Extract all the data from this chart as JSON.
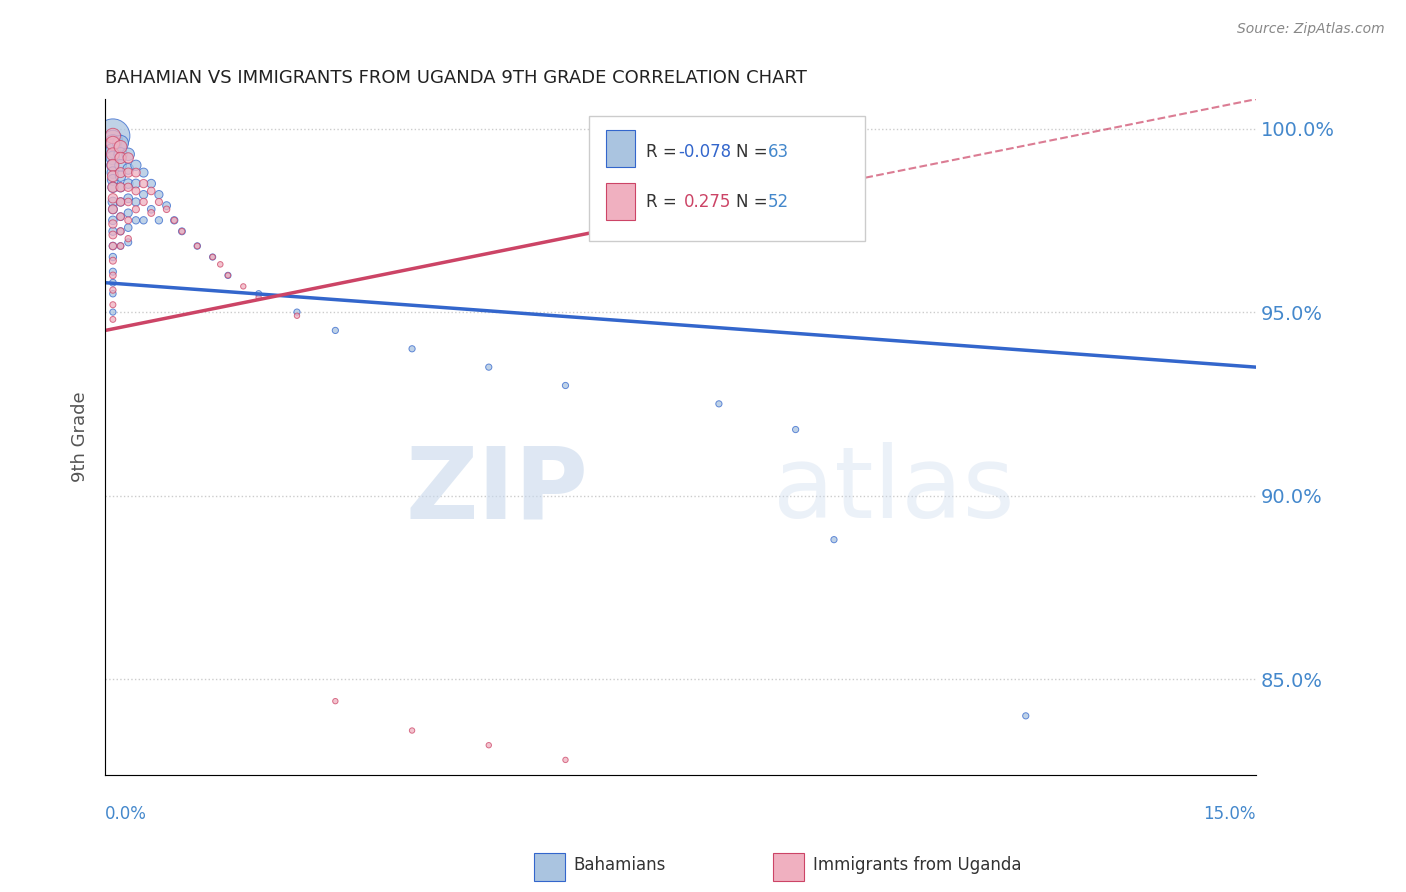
{
  "title": "BAHAMIAN VS IMMIGRANTS FROM UGANDA 9TH GRADE CORRELATION CHART",
  "source": "Source: ZipAtlas.com",
  "ylabel": "9th Grade",
  "legend_blue_label": "Bahamians",
  "legend_pink_label": "Immigrants from Uganda",
  "r_blue": -0.078,
  "n_blue": 63,
  "r_pink": 0.275,
  "n_pink": 52,
  "blue_color": "#aac4e0",
  "pink_color": "#f0b0c0",
  "trend_blue_color": "#3366cc",
  "trend_pink_color": "#cc4466",
  "watermark_zip": "ZIP",
  "watermark_atlas": "atlas",
  "xlim": [
    0.0,
    0.15
  ],
  "ylim": [
    0.824,
    1.008
  ],
  "yticks": [
    0.85,
    0.9,
    0.95,
    1.0
  ],
  "ytick_labels": [
    "85.0%",
    "90.0%",
    "95.0%",
    "100.0%"
  ],
  "grid_color": "#cccccc",
  "right_axis_color": "#4488cc",
  "blue_dots": [
    [
      0.001,
      0.998
    ],
    [
      0.001,
      0.997
    ],
    [
      0.001,
      0.996
    ],
    [
      0.001,
      0.995
    ],
    [
      0.001,
      0.994
    ],
    [
      0.001,
      0.992
    ],
    [
      0.001,
      0.99
    ],
    [
      0.001,
      0.988
    ],
    [
      0.001,
      0.986
    ],
    [
      0.001,
      0.984
    ],
    [
      0.001,
      0.98
    ],
    [
      0.001,
      0.978
    ],
    [
      0.001,
      0.975
    ],
    [
      0.001,
      0.972
    ],
    [
      0.001,
      0.968
    ],
    [
      0.001,
      0.965
    ],
    [
      0.001,
      0.961
    ],
    [
      0.001,
      0.958
    ],
    [
      0.001,
      0.955
    ],
    [
      0.001,
      0.95
    ],
    [
      0.002,
      0.996
    ],
    [
      0.002,
      0.993
    ],
    [
      0.002,
      0.99
    ],
    [
      0.002,
      0.987
    ],
    [
      0.002,
      0.984
    ],
    [
      0.002,
      0.98
    ],
    [
      0.002,
      0.976
    ],
    [
      0.002,
      0.972
    ],
    [
      0.002,
      0.968
    ],
    [
      0.003,
      0.993
    ],
    [
      0.003,
      0.989
    ],
    [
      0.003,
      0.985
    ],
    [
      0.003,
      0.981
    ],
    [
      0.003,
      0.977
    ],
    [
      0.003,
      0.973
    ],
    [
      0.003,
      0.969
    ],
    [
      0.004,
      0.99
    ],
    [
      0.004,
      0.985
    ],
    [
      0.004,
      0.98
    ],
    [
      0.004,
      0.975
    ],
    [
      0.005,
      0.988
    ],
    [
      0.005,
      0.982
    ],
    [
      0.005,
      0.975
    ],
    [
      0.006,
      0.985
    ],
    [
      0.006,
      0.978
    ],
    [
      0.007,
      0.982
    ],
    [
      0.007,
      0.975
    ],
    [
      0.008,
      0.979
    ],
    [
      0.009,
      0.975
    ],
    [
      0.01,
      0.972
    ],
    [
      0.012,
      0.968
    ],
    [
      0.014,
      0.965
    ],
    [
      0.016,
      0.96
    ],
    [
      0.02,
      0.955
    ],
    [
      0.025,
      0.95
    ],
    [
      0.03,
      0.945
    ],
    [
      0.04,
      0.94
    ],
    [
      0.05,
      0.935
    ],
    [
      0.06,
      0.93
    ],
    [
      0.08,
      0.925
    ],
    [
      0.09,
      0.918
    ],
    [
      0.095,
      0.888
    ],
    [
      0.12,
      0.84
    ]
  ],
  "pink_dots": [
    [
      0.001,
      0.998
    ],
    [
      0.001,
      0.996
    ],
    [
      0.001,
      0.993
    ],
    [
      0.001,
      0.99
    ],
    [
      0.001,
      0.987
    ],
    [
      0.001,
      0.984
    ],
    [
      0.001,
      0.981
    ],
    [
      0.001,
      0.978
    ],
    [
      0.001,
      0.974
    ],
    [
      0.001,
      0.971
    ],
    [
      0.001,
      0.968
    ],
    [
      0.001,
      0.964
    ],
    [
      0.001,
      0.96
    ],
    [
      0.001,
      0.956
    ],
    [
      0.001,
      0.952
    ],
    [
      0.001,
      0.948
    ],
    [
      0.002,
      0.995
    ],
    [
      0.002,
      0.992
    ],
    [
      0.002,
      0.988
    ],
    [
      0.002,
      0.984
    ],
    [
      0.002,
      0.98
    ],
    [
      0.002,
      0.976
    ],
    [
      0.002,
      0.972
    ],
    [
      0.002,
      0.968
    ],
    [
      0.003,
      0.992
    ],
    [
      0.003,
      0.988
    ],
    [
      0.003,
      0.984
    ],
    [
      0.003,
      0.98
    ],
    [
      0.003,
      0.975
    ],
    [
      0.003,
      0.97
    ],
    [
      0.004,
      0.988
    ],
    [
      0.004,
      0.983
    ],
    [
      0.004,
      0.978
    ],
    [
      0.005,
      0.985
    ],
    [
      0.005,
      0.98
    ],
    [
      0.006,
      0.983
    ],
    [
      0.006,
      0.977
    ],
    [
      0.007,
      0.98
    ],
    [
      0.008,
      0.978
    ],
    [
      0.009,
      0.975
    ],
    [
      0.01,
      0.972
    ],
    [
      0.012,
      0.968
    ],
    [
      0.014,
      0.965
    ],
    [
      0.015,
      0.963
    ],
    [
      0.016,
      0.96
    ],
    [
      0.018,
      0.957
    ],
    [
      0.02,
      0.954
    ],
    [
      0.025,
      0.949
    ],
    [
      0.03,
      0.844
    ],
    [
      0.04,
      0.836
    ],
    [
      0.05,
      0.832
    ],
    [
      0.06,
      0.828
    ]
  ],
  "blue_dot_sizes": [
    600,
    180,
    150,
    130,
    110,
    95,
    80,
    70,
    62,
    55,
    48,
    43,
    38,
    34,
    30,
    28,
    26,
    24,
    22,
    20,
    130,
    90,
    70,
    55,
    45,
    38,
    32,
    28,
    24,
    80,
    60,
    48,
    40,
    34,
    30,
    26,
    55,
    42,
    35,
    28,
    42,
    35,
    28,
    38,
    30,
    35,
    28,
    32,
    28,
    25,
    22,
    20,
    20,
    20,
    20,
    20,
    20,
    20,
    20,
    20,
    20,
    20,
    20
  ],
  "pink_dot_sizes": [
    120,
    100,
    85,
    72,
    62,
    53,
    46,
    40,
    36,
    32,
    28,
    25,
    23,
    21,
    19,
    18,
    85,
    65,
    52,
    43,
    36,
    30,
    26,
    22,
    55,
    43,
    36,
    30,
    25,
    21,
    40,
    32,
    26,
    36,
    28,
    30,
    24,
    26,
    22,
    20,
    18,
    17,
    16,
    16,
    15,
    15,
    15,
    15,
    15,
    15,
    15,
    15
  ]
}
